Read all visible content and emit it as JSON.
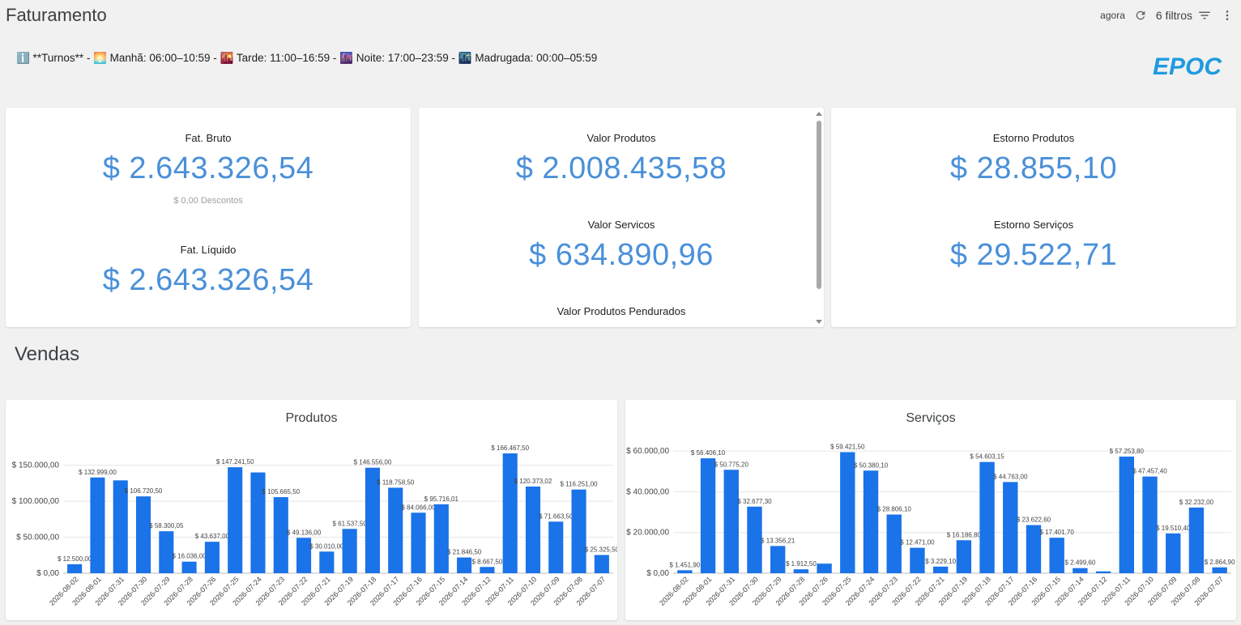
{
  "header": {
    "title": "Faturamento",
    "refresh_label": "agora",
    "filters_label": "6 filtros"
  },
  "turnos_text": "ℹ️ **Turnos** - 🌅 Manhã: 06:00–10:59 - 🌇 Tarde: 11:00–16:59 - 🌆 Noite: 17:00–23:59 - 🌃 Madrugada: 00:00–05:59",
  "logo_text": "EPOC",
  "cards": {
    "fat_bruto_label": "Fat. Bruto",
    "fat_bruto_value": "$ 2.643.326,54",
    "descontos_text": "$ 0,00 Descontos",
    "fat_liquido_label": "Fat. Líquido",
    "fat_liquido_value": "$ 2.643.326,54",
    "valor_produtos_label": "Valor Produtos",
    "valor_produtos_value": "$ 2.008.435,58",
    "valor_servicos_label": "Valor Servicos",
    "valor_servicos_value": "$ 634.890,96",
    "valor_pendurados_label": "Valor Produtos Pendurados",
    "estorno_produtos_label": "Estorno Produtos",
    "estorno_produtos_value": "$ 28.855,10",
    "estorno_servicos_label": "Estorno Serviços",
    "estorno_servicos_value": "$ 29.522,71"
  },
  "section_title": "Vendas",
  "colors": {
    "bar": "#1a73e8",
    "accent": "#4a90d9",
    "logo": "#1e9be0"
  },
  "chart_data": [
    {
      "type": "bar",
      "title": "Produtos",
      "xlabel": "",
      "ylabel": "",
      "ylim": [
        0,
        180000
      ],
      "yticks": [
        0,
        50000,
        100000,
        150000
      ],
      "ytick_labels": [
        "$ 0,00",
        "$ 50.000,00",
        "$ 100.000,00",
        "$ 150.000,00"
      ],
      "categories": [
        "2026-08-02",
        "2026-08-01",
        "2026-07-31",
        "2026-07-30",
        "2026-07-29",
        "2026-07-28",
        "2026-07-26",
        "2026-07-25",
        "2026-07-24",
        "2026-07-23",
        "2026-07-22",
        "2026-07-21",
        "2026-07-19",
        "2026-07-18",
        "2026-07-17",
        "2026-07-16",
        "2026-07-15",
        "2026-07-14",
        "2026-07-12",
        "2026-07-11",
        "2026-07-10",
        "2026-07-09",
        "2026-07-08",
        "2026-07-07"
      ],
      "values": [
        12500,
        132999,
        129000,
        106720.5,
        58300.05,
        16036,
        43637,
        147241.5,
        140000,
        105665.5,
        49136,
        30010,
        61537.5,
        146556,
        118758.5,
        84066,
        95716.01,
        21846.5,
        8667.5,
        166467.5,
        120373.02,
        71663.5,
        116251,
        25325.5
      ],
      "data_labels": [
        "$ 12.500,00",
        "$ 132.999,00",
        "",
        "$ 106.720,50",
        "$ 58.300,05",
        "$ 16.036,00",
        "$ 43.637,00",
        "$ 147.241,50",
        "",
        "$ 105.665,50",
        "$ 49.136,00",
        "$ 30.010,00",
        "$ 61.537,50",
        "$ 146.556,00",
        "$ 118.758,50",
        "$ 84.066,00",
        "$ 95.716,01",
        "$ 21.846,50",
        "$ 8.667,50",
        "$ 166.467,50",
        "$ 120.373,02",
        "$ 71.663,50",
        "$ 116.251,00",
        "$ 25.325,50"
      ],
      "grid": true,
      "legend": "none"
    },
    {
      "type": "bar",
      "title": "Serviços",
      "xlabel": "",
      "ylabel": "",
      "ylim": [
        0,
        64000
      ],
      "yticks": [
        0,
        20000,
        40000,
        60000
      ],
      "ytick_labels": [
        "$ 0,00",
        "$ 20.000,00",
        "$ 40.000,00",
        "$ 60.000,00"
      ],
      "categories": [
        "2026-08-02",
        "2026-08-01",
        "2026-07-31",
        "2026-07-30",
        "2026-07-29",
        "2026-07-28",
        "2026-07-26",
        "2026-07-25",
        "2026-07-24",
        "2026-07-23",
        "2026-07-22",
        "2026-07-21",
        "2026-07-19",
        "2026-07-18",
        "2026-07-17",
        "2026-07-16",
        "2026-07-15",
        "2026-07-14",
        "2026-07-12",
        "2026-07-11",
        "2026-07-10",
        "2026-07-09",
        "2026-07-08",
        "2026-07-07"
      ],
      "values": [
        1451.9,
        56406.1,
        50775.2,
        32677.3,
        13356.21,
        1912.5,
        4700,
        59421.5,
        50380.1,
        28806.1,
        12471,
        3229.1,
        16186.8,
        54603.15,
        44763,
        23622.6,
        17401.7,
        2499.6,
        900,
        57253.8,
        47457.4,
        19510.4,
        32232,
        2864.9
      ],
      "data_labels": [
        "$ 1.451,90",
        "$ 56.406,10",
        "$ 50.775,20",
        "$ 32.677,30",
        "$ 13.356,21",
        "$ 1.912,50",
        "",
        "$ 59.421,50",
        "$ 50.380,10",
        "$ 28.806,10",
        "$ 12.471,00",
        "$ 3.229,10",
        "$ 16.186,80",
        "$ 54.603,15",
        "$ 44.763,00",
        "$ 23.622,60",
        "$ 17.401,70",
        "$ 2.499,60",
        "",
        "$ 57.253,80",
        "$ 47.457,40",
        "$ 19.510,40",
        "$ 32.232,00",
        "$ 2.864,90"
      ],
      "grid": true,
      "legend": "none"
    }
  ]
}
